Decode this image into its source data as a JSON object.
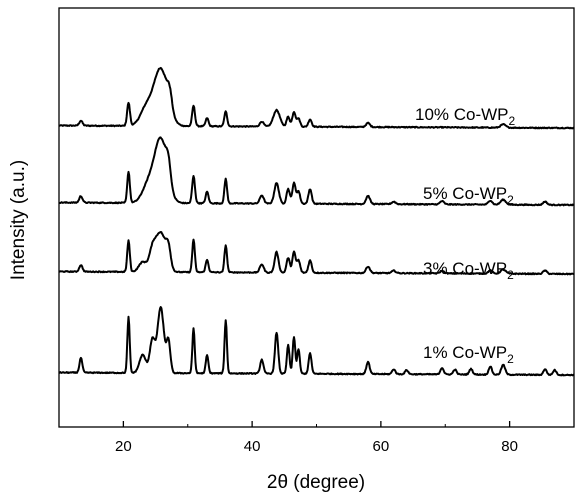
{
  "chart_data": {
    "type": "line",
    "xlabel": "2θ (degree)",
    "ylabel": "Intensity (a.u.)",
    "xlim": [
      10,
      90
    ],
    "xticks": [
      20,
      40,
      60,
      80
    ],
    "y_ticks_shown": false,
    "grid": false,
    "legend": "inline-labels-right",
    "line_color": "#000000",
    "series": [
      {
        "name": "10% Co-WP2",
        "label_main": "10% Co-WP",
        "label_sub": "2",
        "offset": 3.0,
        "peaks": [
          {
            "x": 13.4,
            "h": 0.06,
            "w": 0.25
          },
          {
            "x": 20.8,
            "h": 0.28,
            "w": 0.22
          },
          {
            "x": 23.5,
            "h": 0.2,
            "w": 0.9
          },
          {
            "x": 25.8,
            "h": 0.7,
            "w": 1.1
          },
          {
            "x": 27.2,
            "h": 0.18,
            "w": 0.35
          },
          {
            "x": 30.9,
            "h": 0.25,
            "w": 0.22
          },
          {
            "x": 33.0,
            "h": 0.1,
            "w": 0.22
          },
          {
            "x": 35.9,
            "h": 0.18,
            "w": 0.22
          },
          {
            "x": 41.5,
            "h": 0.06,
            "w": 0.3
          },
          {
            "x": 43.8,
            "h": 0.2,
            "w": 0.5
          },
          {
            "x": 45.6,
            "h": 0.12,
            "w": 0.25
          },
          {
            "x": 46.5,
            "h": 0.18,
            "w": 0.25
          },
          {
            "x": 47.2,
            "h": 0.1,
            "w": 0.25
          },
          {
            "x": 49.0,
            "h": 0.09,
            "w": 0.25
          },
          {
            "x": 58.0,
            "h": 0.05,
            "w": 0.3
          },
          {
            "x": 79.0,
            "h": 0.04,
            "w": 0.4
          }
        ]
      },
      {
        "name": "5% Co-WP2",
        "label_main": "5% Co-WP",
        "label_sub": "2",
        "offset": 2.0,
        "peaks": [
          {
            "x": 13.4,
            "h": 0.08,
            "w": 0.25
          },
          {
            "x": 20.8,
            "h": 0.38,
            "w": 0.2
          },
          {
            "x": 23.8,
            "h": 0.2,
            "w": 0.9
          },
          {
            "x": 25.8,
            "h": 0.78,
            "w": 1.0
          },
          {
            "x": 27.0,
            "h": 0.22,
            "w": 0.35
          },
          {
            "x": 30.9,
            "h": 0.33,
            "w": 0.22
          },
          {
            "x": 33.0,
            "h": 0.14,
            "w": 0.22
          },
          {
            "x": 35.9,
            "h": 0.3,
            "w": 0.2
          },
          {
            "x": 41.5,
            "h": 0.1,
            "w": 0.3
          },
          {
            "x": 43.8,
            "h": 0.25,
            "w": 0.35
          },
          {
            "x": 45.6,
            "h": 0.18,
            "w": 0.25
          },
          {
            "x": 46.5,
            "h": 0.25,
            "w": 0.25
          },
          {
            "x": 47.2,
            "h": 0.15,
            "w": 0.25
          },
          {
            "x": 49.0,
            "h": 0.18,
            "w": 0.25
          },
          {
            "x": 58.0,
            "h": 0.1,
            "w": 0.3
          },
          {
            "x": 62.0,
            "h": 0.03,
            "w": 0.3
          },
          {
            "x": 69.5,
            "h": 0.04,
            "w": 0.3
          },
          {
            "x": 77.0,
            "h": 0.05,
            "w": 0.3
          },
          {
            "x": 79.0,
            "h": 0.06,
            "w": 0.4
          },
          {
            "x": 85.5,
            "h": 0.04,
            "w": 0.3
          }
        ]
      },
      {
        "name": "3% Co-WP2",
        "label_main": "3% Co-WP",
        "label_sub": "2",
        "offset": 1.0,
        "peaks": [
          {
            "x": 13.4,
            "h": 0.08,
            "w": 0.25
          },
          {
            "x": 20.8,
            "h": 0.38,
            "w": 0.2
          },
          {
            "x": 23.0,
            "h": 0.12,
            "w": 0.6
          },
          {
            "x": 24.5,
            "h": 0.22,
            "w": 0.5
          },
          {
            "x": 25.8,
            "h": 0.48,
            "w": 0.8
          },
          {
            "x": 27.0,
            "h": 0.22,
            "w": 0.35
          },
          {
            "x": 30.9,
            "h": 0.4,
            "w": 0.2
          },
          {
            "x": 33.0,
            "h": 0.15,
            "w": 0.22
          },
          {
            "x": 35.9,
            "h": 0.33,
            "w": 0.2
          },
          {
            "x": 41.5,
            "h": 0.1,
            "w": 0.3
          },
          {
            "x": 43.8,
            "h": 0.25,
            "w": 0.3
          },
          {
            "x": 45.6,
            "h": 0.18,
            "w": 0.25
          },
          {
            "x": 46.5,
            "h": 0.25,
            "w": 0.25
          },
          {
            "x": 47.2,
            "h": 0.15,
            "w": 0.25
          },
          {
            "x": 49.0,
            "h": 0.15,
            "w": 0.25
          },
          {
            "x": 58.0,
            "h": 0.08,
            "w": 0.3
          },
          {
            "x": 62.0,
            "h": 0.03,
            "w": 0.3
          },
          {
            "x": 69.5,
            "h": 0.03,
            "w": 0.3
          },
          {
            "x": 77.0,
            "h": 0.04,
            "w": 0.3
          },
          {
            "x": 79.0,
            "h": 0.05,
            "w": 0.4
          },
          {
            "x": 85.5,
            "h": 0.04,
            "w": 0.3
          }
        ]
      },
      {
        "name": "1% Co-WP2",
        "label_main": "1% Co-WP",
        "label_sub": "2",
        "offset": 0.0,
        "peaks": [
          {
            "x": 13.4,
            "h": 0.18,
            "w": 0.22
          },
          {
            "x": 20.8,
            "h": 0.68,
            "w": 0.18
          },
          {
            "x": 23.0,
            "h": 0.22,
            "w": 0.5
          },
          {
            "x": 24.5,
            "h": 0.4,
            "w": 0.4
          },
          {
            "x": 25.8,
            "h": 0.8,
            "w": 0.5
          },
          {
            "x": 27.0,
            "h": 0.38,
            "w": 0.3
          },
          {
            "x": 30.9,
            "h": 0.55,
            "w": 0.18
          },
          {
            "x": 33.0,
            "h": 0.22,
            "w": 0.2
          },
          {
            "x": 35.9,
            "h": 0.65,
            "w": 0.18
          },
          {
            "x": 41.5,
            "h": 0.17,
            "w": 0.25
          },
          {
            "x": 43.8,
            "h": 0.5,
            "w": 0.25
          },
          {
            "x": 45.6,
            "h": 0.35,
            "w": 0.2
          },
          {
            "x": 46.5,
            "h": 0.45,
            "w": 0.2
          },
          {
            "x": 47.2,
            "h": 0.3,
            "w": 0.2
          },
          {
            "x": 49.0,
            "h": 0.25,
            "w": 0.22
          },
          {
            "x": 58.0,
            "h": 0.15,
            "w": 0.25
          },
          {
            "x": 62.0,
            "h": 0.06,
            "w": 0.25
          },
          {
            "x": 64.0,
            "h": 0.05,
            "w": 0.25
          },
          {
            "x": 69.5,
            "h": 0.08,
            "w": 0.25
          },
          {
            "x": 71.5,
            "h": 0.06,
            "w": 0.25
          },
          {
            "x": 74.0,
            "h": 0.07,
            "w": 0.25
          },
          {
            "x": 77.0,
            "h": 0.1,
            "w": 0.25
          },
          {
            "x": 79.0,
            "h": 0.12,
            "w": 0.3
          },
          {
            "x": 85.5,
            "h": 0.07,
            "w": 0.25
          },
          {
            "x": 87.0,
            "h": 0.06,
            "w": 0.25
          }
        ]
      }
    ]
  }
}
